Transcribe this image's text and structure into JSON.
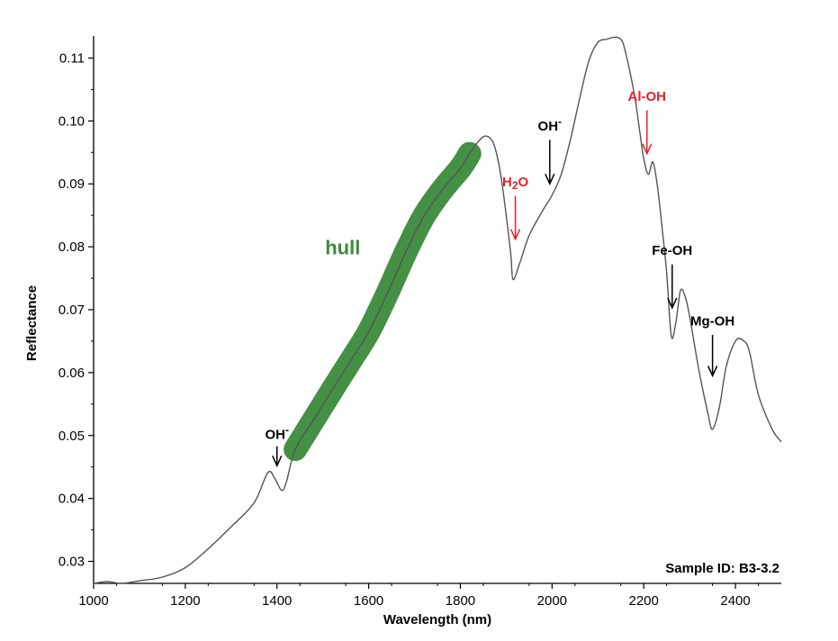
{
  "chart_data": {
    "type": "line",
    "title": "",
    "xlabel": "Wavelength (nm)",
    "ylabel": "Reflectance",
    "xlim": [
      1000,
      2500
    ],
    "ylim": [
      0.0265,
      0.1135
    ],
    "xticks": [
      1000,
      1200,
      1400,
      1600,
      1800,
      2000,
      2200,
      2400
    ],
    "xtick_labels": [
      "1000",
      "1200",
      "1400",
      "1600",
      "1800",
      "2000",
      "2200",
      "2400"
    ],
    "yticks": [
      0.03,
      0.04,
      0.05,
      0.06,
      0.07,
      0.08,
      0.09,
      0.1,
      0.11
    ],
    "ytick_labels": [
      "0.03",
      "0.04",
      "0.05",
      "0.06",
      "0.07",
      "0.08",
      "0.09",
      "0.10",
      "0.11"
    ],
    "grid": false,
    "line_color": "#555555",
    "series": [
      {
        "x": [
          1000,
          1030,
          1060,
          1100,
          1150,
          1200,
          1250,
          1300,
          1350,
          1380,
          1395,
          1410,
          1420,
          1440,
          1480,
          1520,
          1560,
          1600,
          1640,
          1680,
          1720,
          1760,
          1800,
          1820,
          1840,
          1855,
          1870,
          1880,
          1890,
          1900,
          1910,
          1915,
          1930,
          1950,
          1980,
          2000,
          2020,
          2040,
          2060,
          2080,
          2100,
          2120,
          2135,
          2150,
          2160,
          2180,
          2190,
          2200,
          2210,
          2220,
          2230,
          2240,
          2250,
          2260,
          2270,
          2280,
          2290,
          2300,
          2320,
          2340,
          2350,
          2365,
          2380,
          2400,
          2415,
          2430,
          2450,
          2480,
          2500
        ],
        "y": [
          0.0265,
          0.0268,
          0.0265,
          0.0269,
          0.0275,
          0.029,
          0.032,
          0.0355,
          0.0393,
          0.0441,
          0.0432,
          0.0413,
          0.0425,
          0.0478,
          0.0525,
          0.0572,
          0.0618,
          0.0665,
          0.0725,
          0.079,
          0.0848,
          0.089,
          0.0925,
          0.0948,
          0.0968,
          0.0976,
          0.0968,
          0.0945,
          0.0905,
          0.085,
          0.0788,
          0.0748,
          0.0775,
          0.0818,
          0.0858,
          0.0882,
          0.0915,
          0.097,
          0.1035,
          0.1095,
          0.1125,
          0.113,
          0.1133,
          0.113,
          0.111,
          0.104,
          0.099,
          0.094,
          0.0915,
          0.0935,
          0.0895,
          0.083,
          0.0758,
          0.0658,
          0.068,
          0.073,
          0.0722,
          0.069,
          0.0605,
          0.0535,
          0.051,
          0.0545,
          0.061,
          0.065,
          0.0652,
          0.0635,
          0.0565,
          0.051,
          0.049
        ]
      }
    ],
    "hull": {
      "label": "hull",
      "color": "#3a8a3a",
      "x": [
        1440,
        1480,
        1520,
        1560,
        1600,
        1640,
        1680,
        1720,
        1760,
        1800,
        1820
      ],
      "y": [
        0.0478,
        0.0525,
        0.0572,
        0.0618,
        0.0665,
        0.0725,
        0.079,
        0.0848,
        0.089,
        0.0925,
        0.0948
      ]
    },
    "annotations": [
      {
        "label": "OH",
        "sup": "-",
        "color": "#000000",
        "x": 1400,
        "y_text": 0.0495,
        "y_start": 0.0483,
        "y_end": 0.0452
      },
      {
        "label": "H",
        "sub": "2",
        "label2": "O",
        "color": "#e8202a",
        "x": 1920,
        "y_text": 0.0896,
        "y_start": 0.0881,
        "y_end": 0.0812
      },
      {
        "label": "OH",
        "sup": "-",
        "color": "#000000",
        "x": 1995,
        "y_text": 0.0985,
        "y_start": 0.097,
        "y_end": 0.09
      },
      {
        "label": "Al-OH",
        "color": "#e8202a",
        "x": 2207,
        "y_text": 0.1032,
        "y_start": 0.1017,
        "y_end": 0.0948
      },
      {
        "label": "Fe-OH",
        "color": "#000000",
        "x": 2262,
        "y_text": 0.0787,
        "y_start": 0.0772,
        "y_end": 0.0703
      },
      {
        "label": "Mg-OH",
        "color": "#000000",
        "x": 2350,
        "y_text": 0.0675,
        "y_start": 0.066,
        "y_end": 0.0595
      }
    ],
    "sample_id": "Sample ID: B3-3.2"
  }
}
